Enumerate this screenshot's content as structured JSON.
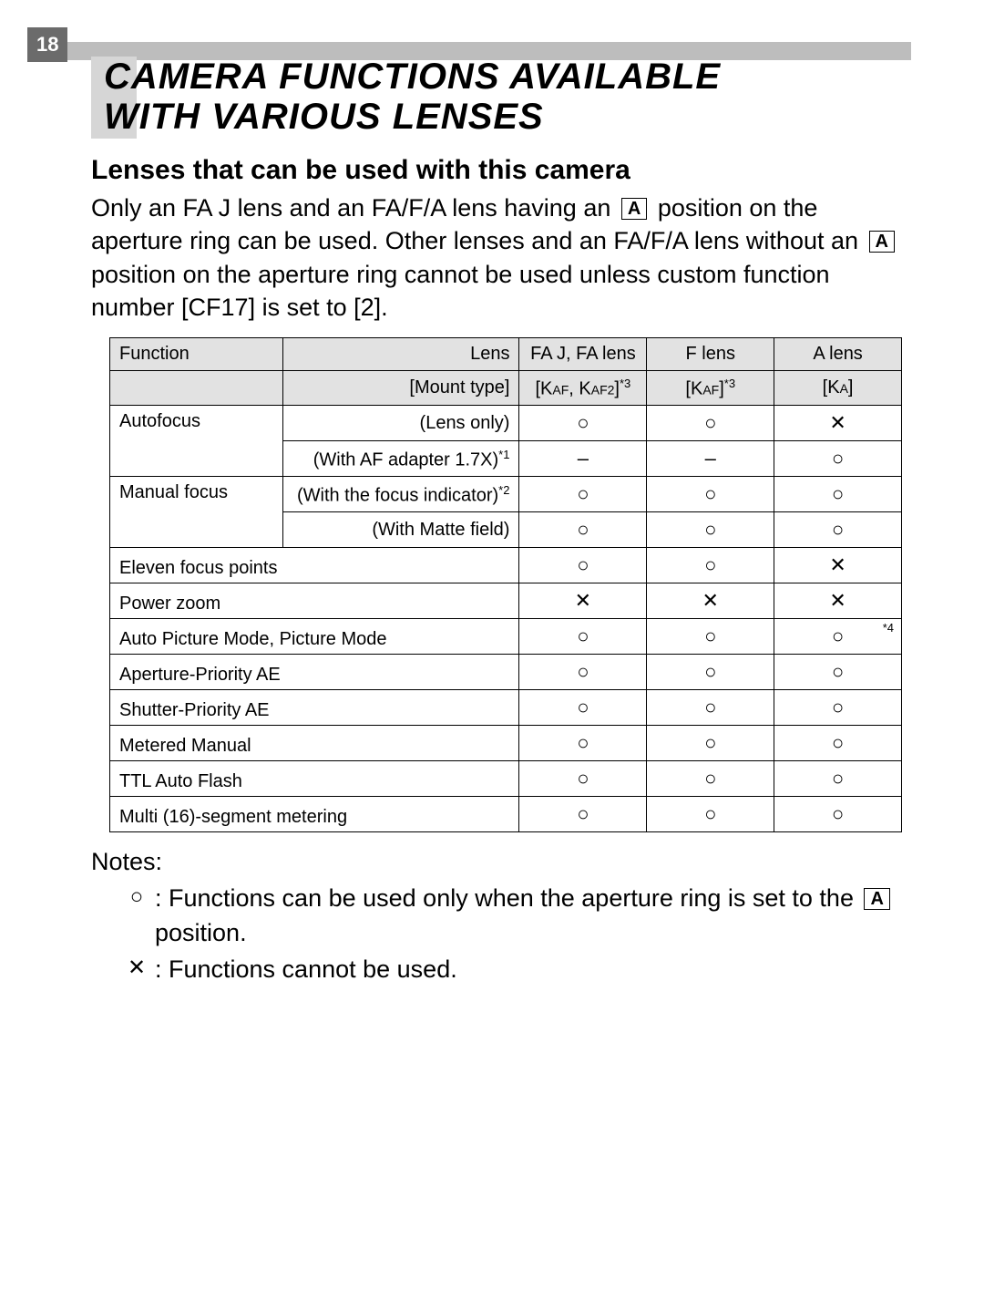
{
  "page_number": "18",
  "title_line1": "CAMERA FUNCTIONS AVAILABLE",
  "title_line2": "WITH VARIOUS LENSES",
  "subtitle": "Lenses that can be used with this camera",
  "body_part1": "Only an FA J lens and an FA/F/A lens having an ",
  "body_part2": " position on the aperture ring can be used. Other lenses and an FA/F/A lens without an ",
  "body_part3": " position on the aperture ring cannot be used unless custom function number [CF17] is set to [2].",
  "a_label": "A",
  "symbols": {
    "yes": "○",
    "no": "✕",
    "dash": "–"
  },
  "table": {
    "header": {
      "function": "Function",
      "lens": "Lens",
      "mount": "[Mount type]",
      "cols": [
        "FA J, FA lens",
        "F lens",
        "A lens"
      ],
      "mounts": [
        "[KAF, KAF2]*3",
        "[KAF]*3",
        "[KA]"
      ]
    },
    "rows": [
      {
        "label": "Autofocus",
        "sub": "(Lens only)",
        "v": [
          "yes",
          "yes",
          "no"
        ],
        "rowspan": 2
      },
      {
        "sub": "(With AF adapter 1.7X)*1",
        "v": [
          "dash",
          "dash",
          "yes"
        ]
      },
      {
        "label": "Manual focus",
        "sub": "(With the focus indicator)*2",
        "v": [
          "yes",
          "yes",
          "yes"
        ],
        "rowspan": 2
      },
      {
        "sub": "(With Matte field)",
        "v": [
          "yes",
          "yes",
          "yes"
        ]
      },
      {
        "full": "Eleven focus points",
        "v": [
          "yes",
          "yes",
          "no"
        ]
      },
      {
        "full": "Power zoom",
        "v": [
          "no",
          "no",
          "no"
        ]
      },
      {
        "full": "Auto Picture Mode, Picture Mode",
        "v": [
          "yes",
          "yes",
          "yes"
        ],
        "note3": "*4"
      },
      {
        "full": "Aperture-Priority AE",
        "v": [
          "yes",
          "yes",
          "yes"
        ]
      },
      {
        "full": "Shutter-Priority AE",
        "v": [
          "yes",
          "yes",
          "yes"
        ]
      },
      {
        "full": "Metered Manual",
        "v": [
          "yes",
          "yes",
          "yes"
        ]
      },
      {
        "full": "TTL Auto Flash",
        "v": [
          "yes",
          "yes",
          "yes"
        ]
      },
      {
        "full": "Multi (16)-segment metering",
        "v": [
          "yes",
          "yes",
          "yes"
        ]
      }
    ]
  },
  "notes": {
    "heading": "Notes:",
    "n1a": ": Functions can be used only when the aperture ring is set to the ",
    "n1b": " position.",
    "n2": ": Functions cannot be used."
  }
}
